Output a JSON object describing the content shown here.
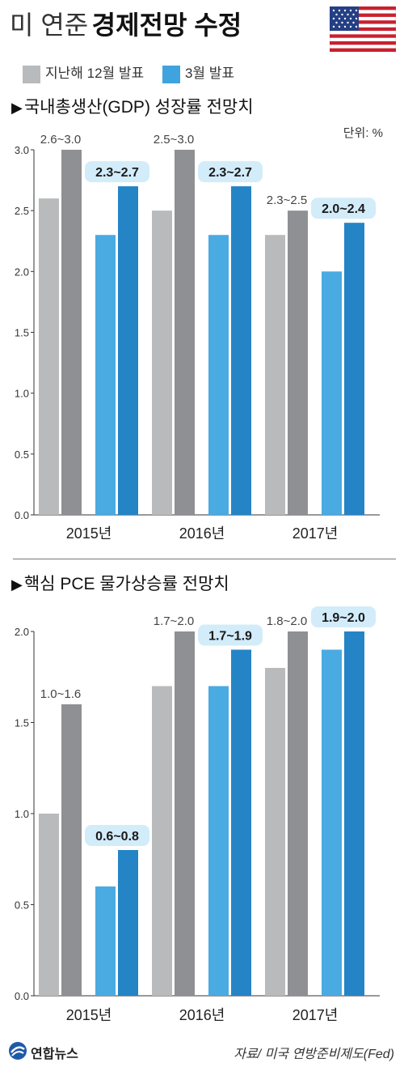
{
  "header": {
    "title_prefix": "미 연준",
    "title_main": "경제전망 수정"
  },
  "legend": [
    {
      "label": "지난해 12월 발표",
      "color": "#b9babc"
    },
    {
      "label": "3월 발표",
      "color": "#3fa3de"
    }
  ],
  "unit_label": "단위: %",
  "chart_data": [
    {
      "type": "bar",
      "title": "국내총생산(GDP) 성장률 전망치",
      "categories": [
        "2015년",
        "2016년",
        "2017년"
      ],
      "ylim": [
        0,
        3.0
      ],
      "yticks": [
        "0.0",
        "0.5",
        "1.0",
        "1.5",
        "2.0",
        "2.5",
        "3.0"
      ],
      "series": [
        {
          "name": "지난해 12월 발표",
          "low": [
            2.6,
            2.5,
            2.3
          ],
          "high": [
            3.0,
            3.0,
            2.5
          ],
          "range_labels": [
            "2.6~3.0",
            "2.5~3.0",
            "2.3~2.5"
          ]
        },
        {
          "name": "3월 발표",
          "low": [
            2.3,
            2.3,
            2.0
          ],
          "high": [
            2.7,
            2.7,
            2.4
          ],
          "range_labels": [
            "2.3~2.7",
            "2.3~2.7",
            "2.0~2.4"
          ]
        }
      ]
    },
    {
      "type": "bar",
      "title": "핵심 PCE 물가상승률 전망치",
      "categories": [
        "2015년",
        "2016년",
        "2017년"
      ],
      "ylim": [
        0,
        2.0
      ],
      "yticks": [
        "0.0",
        "0.5",
        "1.0",
        "1.5",
        "2.0"
      ],
      "series": [
        {
          "name": "지난해 12월 발표",
          "low": [
            1.0,
            1.7,
            1.8
          ],
          "high": [
            1.6,
            2.0,
            2.0
          ],
          "range_labels": [
            "1.0~1.6",
            "1.7~2.0",
            "1.8~2.0"
          ]
        },
        {
          "name": "3월 발표",
          "low": [
            0.6,
            1.7,
            1.9
          ],
          "high": [
            0.8,
            1.9,
            2.0
          ],
          "range_labels": [
            "0.6~0.8",
            "1.7~1.9",
            "1.9~2.0"
          ]
        }
      ]
    }
  ],
  "colors": {
    "dec_low": "#b9babc",
    "dec_high": "#8e9093",
    "mar_low": "#4aaae2",
    "mar_high": "#2484c6",
    "label_box": "#d3ecfa"
  },
  "footer": {
    "logo_text": "연합뉴스",
    "source": "자료/ 미국 연방준비제도(Fed)"
  }
}
